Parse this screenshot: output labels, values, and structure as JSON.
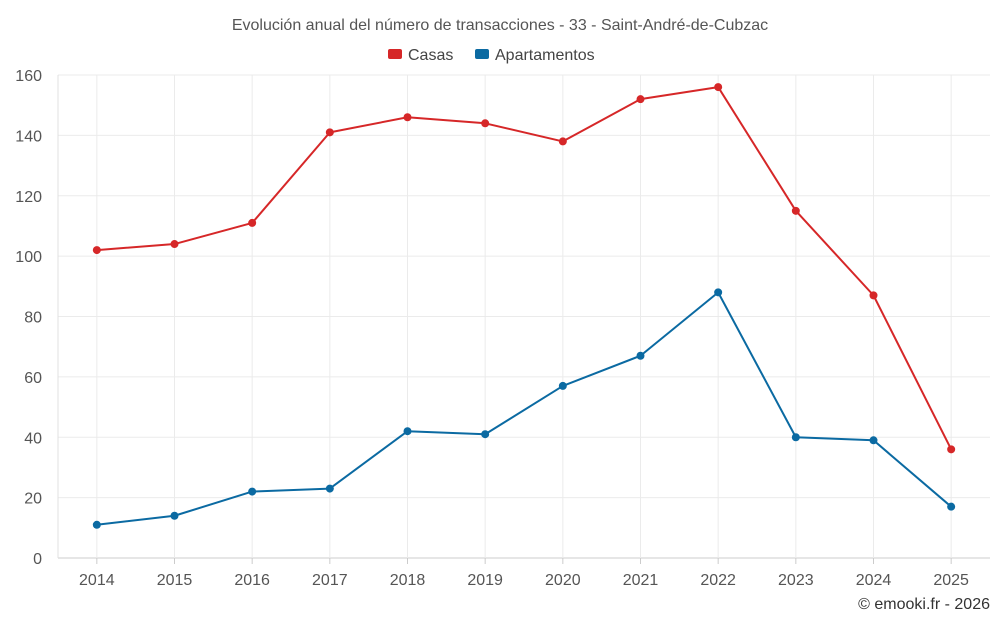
{
  "chart_data": {
    "type": "line",
    "title": "Evolución anual del número de transacciones - 33 - Saint-André-de-Cubzac",
    "categories": [
      "2014",
      "2015",
      "2016",
      "2017",
      "2018",
      "2019",
      "2020",
      "2021",
      "2022",
      "2023",
      "2024",
      "2025"
    ],
    "ylim": [
      0,
      160
    ],
    "yticks": [
      0,
      20,
      40,
      60,
      80,
      100,
      120,
      140,
      160
    ],
    "grid": true,
    "legend_position": "top-center",
    "series": [
      {
        "name": "Casas",
        "color": "#d62728",
        "values": [
          102,
          104,
          111,
          141,
          146,
          144,
          138,
          152,
          156,
          115,
          87,
          36
        ]
      },
      {
        "name": "Apartamentos",
        "color": "#0b6aa2",
        "values": [
          11,
          14,
          22,
          23,
          42,
          41,
          57,
          67,
          88,
          40,
          39,
          17
        ]
      }
    ]
  },
  "credit": "© emooki.fr - 2026"
}
